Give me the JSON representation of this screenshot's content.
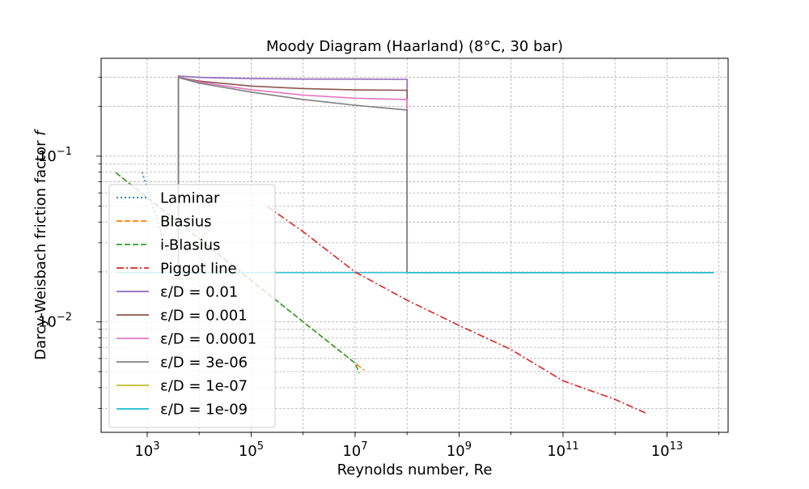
{
  "chart_data": {
    "type": "line",
    "title": "Moody Diagram (Haarland) (8°C, 30 bar)",
    "xlabel": "Reynolds number, Re",
    "ylabel_prefix": "Darcy-Weisbach friction factor ",
    "ylabel_symbol": "f",
    "x_scale": "log",
    "y_scale": "log",
    "xlim": [
      130,
      150000000000000.0
    ],
    "ylim": [
      0.00215,
      0.39
    ],
    "grid": true,
    "legend_position": "lower-left",
    "x_ticks": [
      {
        "value": 1000,
        "base": "10",
        "exp": "3"
      },
      {
        "value": 100000,
        "base": "10",
        "exp": "5"
      },
      {
        "value": 10000000,
        "base": "10",
        "exp": "7"
      },
      {
        "value": 1000000000,
        "base": "10",
        "exp": "9"
      },
      {
        "value": 100000000000,
        "base": "10",
        "exp": "11"
      },
      {
        "value": 10000000000000,
        "base": "10",
        "exp": "13"
      }
    ],
    "y_ticks": [
      {
        "value": 0.1,
        "base": "10",
        "exp": "−1"
      },
      {
        "value": 0.01,
        "base": "10",
        "exp": "−2"
      }
    ],
    "series": [
      {
        "name": "Laminar",
        "color": "#1f77b4",
        "dash": "2,3",
        "points": [
          [
            800,
            0.08
          ],
          [
            1000,
            0.064
          ],
          [
            1500,
            0.0427
          ],
          [
            2000,
            0.032
          ],
          [
            2500,
            0.0256
          ]
        ]
      },
      {
        "name": "Blasius",
        "color": "#ff7f0e",
        "dash": "7,3",
        "points": [
          [
            250,
            0.0795
          ],
          [
            1000,
            0.0563
          ],
          [
            10000,
            0.0316
          ],
          [
            100000,
            0.0178
          ],
          [
            1000000,
            0.01
          ],
          [
            10000000,
            0.00563
          ],
          [
            15000000,
            0.0051
          ]
        ]
      },
      {
        "name": "i-Blasius",
        "color": "#2ca02c",
        "dash": "7,3",
        "points": [
          [
            250,
            0.0795
          ],
          [
            1000,
            0.0563
          ],
          [
            10000,
            0.0316
          ],
          [
            100000,
            0.0178
          ],
          [
            1000000,
            0.01
          ],
          [
            10000000,
            0.00563
          ],
          [
            12000000,
            0.0049
          ]
        ]
      },
      {
        "name": "Piggot line",
        "color": "#d62728",
        "dash": "9,3,2,3",
        "points": [
          [
            200000,
            0.05
          ],
          [
            1000000,
            0.035
          ],
          [
            10000000,
            0.02
          ],
          [
            100000000,
            0.0135
          ],
          [
            1000000000,
            0.0095
          ],
          [
            10000000000,
            0.0068
          ],
          [
            100000000000,
            0.0044
          ],
          [
            1000000000000,
            0.0034
          ],
          [
            4000000000000,
            0.0028
          ]
        ]
      },
      {
        "name": "ε/D = 0.01",
        "color": "#9467bd",
        "dash": "",
        "points": [
          [
            4000,
            0.02
          ],
          [
            4000,
            0.305
          ],
          [
            10000,
            0.299
          ],
          [
            100000,
            0.294
          ],
          [
            1000000,
            0.292
          ],
          [
            10000000,
            0.292
          ],
          [
            100000000,
            0.291
          ],
          [
            100000000,
            0.02
          ]
        ]
      },
      {
        "name": "ε/D = 0.001",
        "color": "#8c564b",
        "dash": "",
        "points": [
          [
            4000,
            0.02
          ],
          [
            4000,
            0.299
          ],
          [
            10000,
            0.284
          ],
          [
            100000,
            0.265
          ],
          [
            1000000,
            0.256
          ],
          [
            10000000,
            0.251
          ],
          [
            100000000,
            0.25
          ],
          [
            100000000,
            0.02
          ]
        ]
      },
      {
        "name": "ε/D = 0.0001",
        "color": "#e377c2",
        "dash": "",
        "points": [
          [
            4000,
            0.02
          ],
          [
            4000,
            0.298
          ],
          [
            10000,
            0.28
          ],
          [
            100000,
            0.252
          ],
          [
            1000000,
            0.234
          ],
          [
            10000000,
            0.224
          ],
          [
            100000000,
            0.22
          ],
          [
            100000000,
            0.02
          ]
        ]
      },
      {
        "name": "ε/D = 3e-06",
        "color": "#7f7f7f",
        "dash": "",
        "points": [
          [
            4000,
            0.02
          ],
          [
            4000,
            0.298
          ],
          [
            10000,
            0.276
          ],
          [
            100000,
            0.244
          ],
          [
            1000000,
            0.22
          ],
          [
            10000000,
            0.203
          ],
          [
            100000000,
            0.19
          ],
          [
            100000000,
            0.02
          ]
        ]
      },
      {
        "name": "ε/D = 1e-07",
        "color": "#bcbd22",
        "dash": "",
        "points": [
          [
            100000000,
            0.0198
          ],
          [
            80000000000000,
            0.0198
          ]
        ]
      },
      {
        "name": "ε/D = 1e-09",
        "color": "#17becf",
        "dash": "",
        "points": [
          [
            100000000,
            0.0198
          ],
          [
            80000000000000,
            0.0198
          ]
        ]
      }
    ],
    "turbulent_floor": {
      "color": "#17becf",
      "points": [
        [
          250,
          0.0198
        ],
        [
          100000000,
          0.0198
        ]
      ]
    }
  }
}
